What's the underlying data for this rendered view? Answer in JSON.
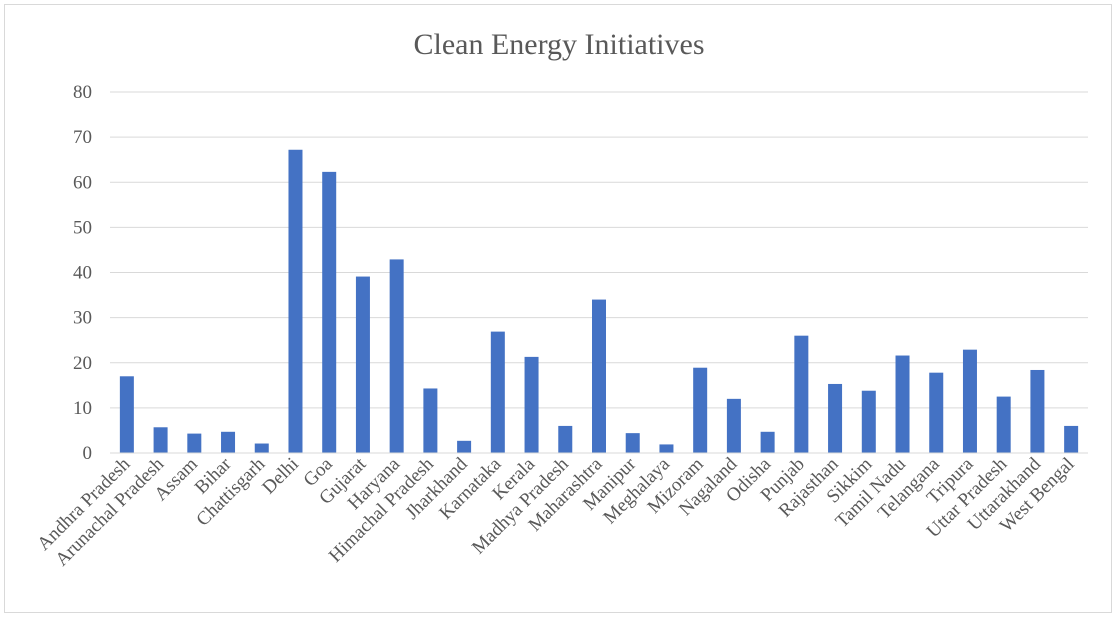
{
  "chart_data": {
    "type": "bar",
    "title": "Clean Energy Initiatives",
    "xlabel": "",
    "ylabel": "",
    "ylim": [
      0,
      80
    ],
    "yticks": [
      0,
      10,
      20,
      30,
      40,
      50,
      60,
      70,
      80
    ],
    "grid": true,
    "legend": "none",
    "bar_color": "#4472c4",
    "categories": [
      "Andhra Pradesh",
      "Arunachal Pradesh",
      "Assam",
      "Bihar",
      "Chattisgarh",
      "Delhi",
      "Goa",
      "Gujarat",
      "Haryana",
      "Himachal Pradesh",
      "Jharkhand",
      "Karnataka",
      "Kerala",
      "Madhya Pradesh",
      "Maharashtra",
      "Manipur",
      "Meghalaya",
      "Mizoram",
      "Nagaland",
      "Odisha",
      "Punjab",
      "Rajasthan",
      "Sikkim",
      "Tamil Nadu",
      "Telangana",
      "Tripura",
      "Uttar Pradesh",
      "Uttarakhand",
      "West Bengal"
    ],
    "values": [
      17,
      5.7,
      4.3,
      4.7,
      2.1,
      67.2,
      62.3,
      39.1,
      42.9,
      14.3,
      2.7,
      26.9,
      21.3,
      6.0,
      34.0,
      4.4,
      1.9,
      18.9,
      12.0,
      4.7,
      26.0,
      15.3,
      13.8,
      21.6,
      17.8,
      22.9,
      12.5,
      18.4,
      6.0
    ]
  }
}
